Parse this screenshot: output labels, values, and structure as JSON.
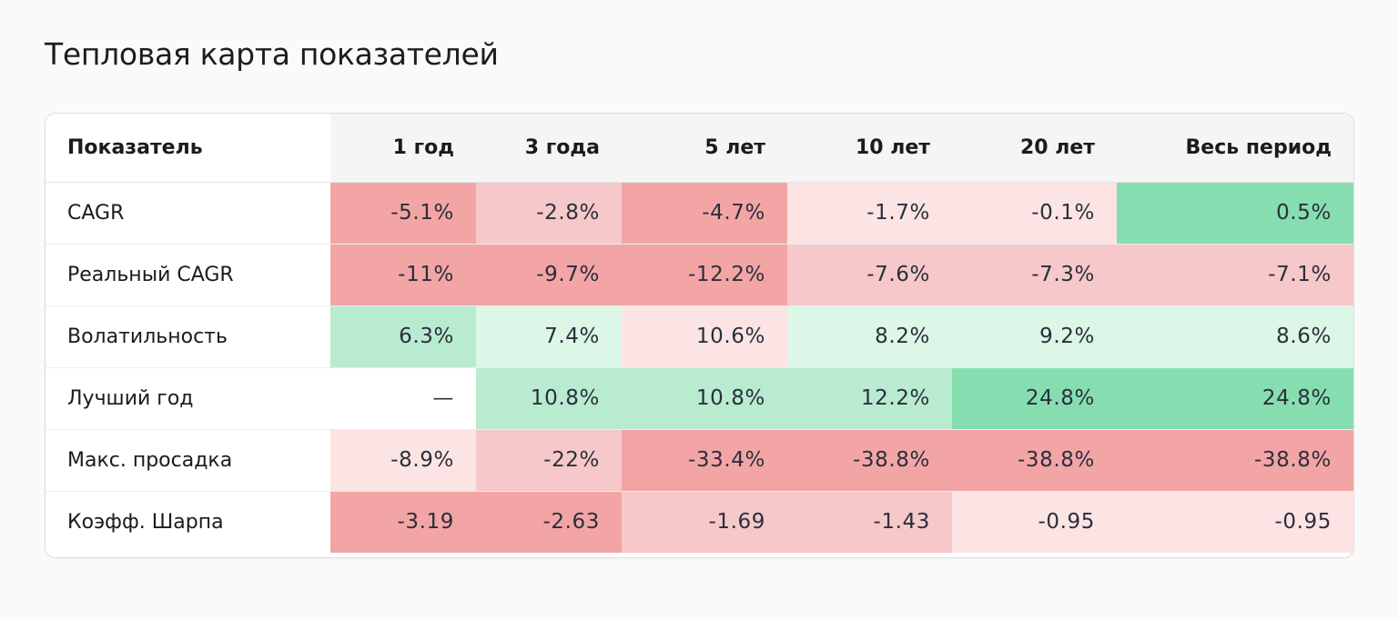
{
  "page_title": "Тепловая карта показателей",
  "colors": {
    "red_strong": "#f3a5a6",
    "red_medium": "#f7c8c9",
    "red_light": "#fce4e4",
    "green_light": "#dcf6e7",
    "green_medium": "#b8ebd0",
    "green_strong": "#86deb0",
    "neutral": "#ffffff"
  },
  "chart_data": {
    "type": "heatmap",
    "title": "Тепловая карта показателей",
    "header_label": "Показатель",
    "columns": [
      "1 год",
      "3 года",
      "5 лет",
      "10 лет",
      "20 лет",
      "Весь период"
    ],
    "rows": [
      {
        "label": "CAGR",
        "values": [
          "-5.1%",
          "-2.8%",
          "-4.7%",
          "-1.7%",
          "-0.1%",
          "0.5%"
        ],
        "levels": [
          "red_strong",
          "red_medium",
          "red_strong",
          "red_light",
          "red_light",
          "green_strong"
        ]
      },
      {
        "label": "Реальный CAGR",
        "values": [
          "-11%",
          "-9.7%",
          "-12.2%",
          "-7.6%",
          "-7.3%",
          "-7.1%"
        ],
        "levels": [
          "red_strong",
          "red_strong",
          "red_strong",
          "red_medium",
          "red_medium",
          "red_medium"
        ]
      },
      {
        "label": "Волатильность",
        "values": [
          "6.3%",
          "7.4%",
          "10.6%",
          "8.2%",
          "9.2%",
          "8.6%"
        ],
        "levels": [
          "green_medium",
          "green_light",
          "red_light",
          "green_light",
          "green_light",
          "green_light"
        ]
      },
      {
        "label": "Лучший год",
        "values": [
          "—",
          "10.8%",
          "10.8%",
          "12.2%",
          "24.8%",
          "24.8%"
        ],
        "levels": [
          "neutral",
          "green_medium",
          "green_medium",
          "green_medium",
          "green_strong",
          "green_strong"
        ]
      },
      {
        "label": "Макс. просадка",
        "values": [
          "-8.9%",
          "-22%",
          "-33.4%",
          "-38.8%",
          "-38.8%",
          "-38.8%"
        ],
        "levels": [
          "red_light",
          "red_medium",
          "red_strong",
          "red_strong",
          "red_strong",
          "red_strong"
        ]
      },
      {
        "label": "Коэфф. Шарпа",
        "values": [
          "-3.19",
          "-2.63",
          "-1.69",
          "-1.43",
          "-0.95",
          "-0.95"
        ],
        "levels": [
          "red_strong",
          "red_strong",
          "red_medium",
          "red_medium",
          "red_light",
          "red_light"
        ]
      }
    ]
  }
}
